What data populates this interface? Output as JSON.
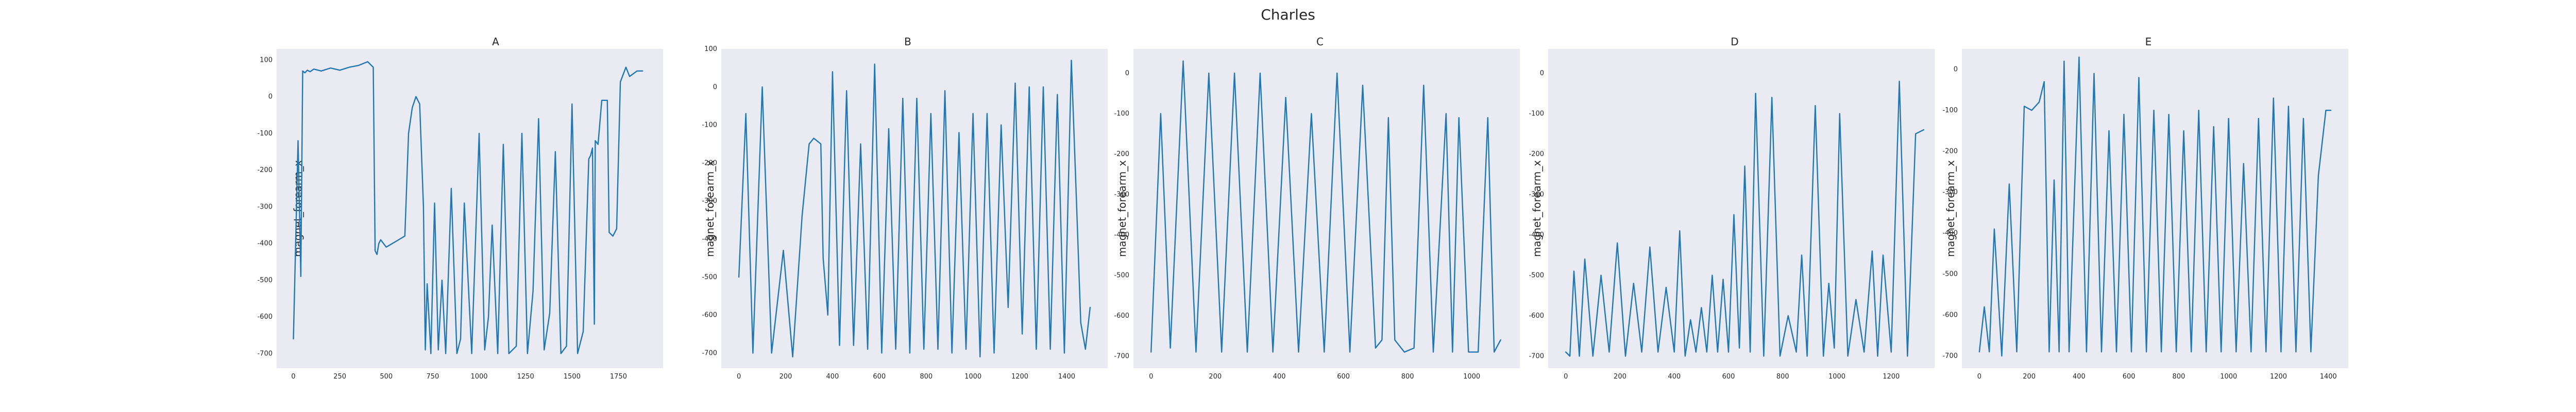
{
  "figure": {
    "suptitle": "Charles"
  },
  "colors": {
    "panel_bg": "#eaeaf2",
    "line": "#1f77b4",
    "text": "#262626"
  },
  "chart_data": [
    {
      "type": "line",
      "title": "A",
      "ylabel": "magnet_forearm_x",
      "xlim": [
        -90,
        1990
      ],
      "ylim": [
        -740,
        130
      ],
      "xticks": [
        0,
        250,
        500,
        750,
        1000,
        1250,
        1500,
        1750
      ],
      "yticks": [
        -700,
        -600,
        -500,
        -400,
        -300,
        -200,
        -100,
        0,
        100
      ],
      "x": [
        0,
        25,
        40,
        50,
        62,
        75,
        90,
        110,
        150,
        200,
        250,
        300,
        350,
        400,
        430,
        440,
        450,
        460,
        470,
        500,
        550,
        600,
        620,
        640,
        660,
        680,
        700,
        710,
        720,
        740,
        760,
        780,
        800,
        820,
        850,
        880,
        900,
        920,
        960,
        1000,
        1030,
        1050,
        1070,
        1100,
        1130,
        1160,
        1200,
        1230,
        1260,
        1290,
        1320,
        1350,
        1380,
        1410,
        1440,
        1470,
        1500,
        1530,
        1560,
        1590,
        1600,
        1610,
        1620,
        1625,
        1640,
        1660,
        1690,
        1700,
        1720,
        1740,
        1760,
        1790,
        1810,
        1850,
        1880
      ],
      "values": [
        -660,
        -120,
        -490,
        70,
        65,
        72,
        68,
        75,
        70,
        78,
        72,
        80,
        85,
        95,
        80,
        -420,
        -430,
        -400,
        -390,
        -410,
        -395,
        -380,
        -100,
        -30,
        0,
        -20,
        -300,
        -690,
        -510,
        -700,
        -290,
        -690,
        -500,
        -700,
        -250,
        -700,
        -660,
        -290,
        -700,
        -100,
        -690,
        -600,
        -350,
        -700,
        -130,
        -700,
        -680,
        -100,
        -700,
        -530,
        -60,
        -690,
        -590,
        -150,
        -700,
        -680,
        -20,
        -700,
        -640,
        -170,
        -160,
        -140,
        -620,
        -120,
        -130,
        -10,
        -10,
        -370,
        -380,
        -360,
        40,
        80,
        55,
        70,
        70
      ]
    },
    {
      "type": "line",
      "title": "B",
      "ylabel": "magnet_forearm_x",
      "xlim": [
        -75,
        1575
      ],
      "ylim": [
        -740,
        100
      ],
      "xticks": [
        0,
        200,
        400,
        600,
        800,
        1000,
        1200,
        1400
      ],
      "yticks": [
        -700,
        -600,
        -500,
        -400,
        -300,
        -200,
        -100,
        0,
        100
      ],
      "x": [
        0,
        30,
        60,
        100,
        140,
        190,
        230,
        270,
        300,
        320,
        330,
        350,
        360,
        380,
        400,
        430,
        460,
        490,
        520,
        550,
        580,
        610,
        640,
        670,
        700,
        730,
        760,
        790,
        820,
        850,
        880,
        910,
        940,
        970,
        1000,
        1030,
        1060,
        1090,
        1120,
        1150,
        1180,
        1210,
        1240,
        1270,
        1300,
        1330,
        1360,
        1390,
        1420,
        1440,
        1460,
        1480,
        1500
      ],
      "values": [
        -500,
        -70,
        -700,
        0,
        -700,
        -430,
        -710,
        -340,
        -150,
        -135,
        -140,
        -150,
        -450,
        -600,
        40,
        -680,
        -10,
        -680,
        -150,
        -690,
        60,
        -700,
        -110,
        -690,
        -30,
        -700,
        -30,
        -690,
        -70,
        -690,
        -10,
        -700,
        -120,
        -690,
        -70,
        -710,
        -70,
        -700,
        -100,
        -580,
        10,
        -650,
        0,
        -690,
        0,
        -690,
        -20,
        -700,
        70,
        -270,
        -620,
        -690,
        -580
      ]
    },
    {
      "type": "line",
      "title": "C",
      "ylabel": "magnet_forearm_x",
      "xlim": [
        -55,
        1150
      ],
      "ylim": [
        -730,
        60
      ],
      "xticks": [
        0,
        200,
        400,
        600,
        800,
        1000
      ],
      "yticks": [
        -700,
        -600,
        -500,
        -400,
        -300,
        -200,
        -100,
        0
      ],
      "x": [
        0,
        30,
        60,
        100,
        140,
        180,
        220,
        260,
        300,
        340,
        380,
        420,
        460,
        500,
        540,
        580,
        620,
        660,
        700,
        720,
        740,
        760,
        790,
        820,
        850,
        880,
        900,
        920,
        940,
        960,
        990,
        1020,
        1050,
        1070,
        1090
      ],
      "values": [
        -690,
        -100,
        -680,
        30,
        -690,
        0,
        -690,
        0,
        -690,
        0,
        -690,
        -60,
        -690,
        -100,
        -690,
        0,
        -690,
        -30,
        -680,
        -660,
        -110,
        -660,
        -690,
        -680,
        -30,
        -690,
        -400,
        -100,
        -690,
        -110,
        -690,
        -690,
        -110,
        -690,
        -660
      ]
    },
    {
      "type": "line",
      "title": "D",
      "ylabel": "magnet_forearm_x",
      "xlim": [
        -65,
        1360
      ],
      "ylim": [
        -730,
        60
      ],
      "xticks": [
        0,
        200,
        400,
        600,
        800,
        1000,
        1200
      ],
      "yticks": [
        -700,
        -600,
        -500,
        -400,
        -300,
        -200,
        -100,
        0
      ],
      "x": [
        0,
        15,
        30,
        50,
        70,
        100,
        130,
        160,
        190,
        220,
        250,
        280,
        310,
        340,
        370,
        400,
        420,
        440,
        460,
        480,
        500,
        520,
        540,
        560,
        580,
        600,
        620,
        640,
        660,
        680,
        700,
        730,
        760,
        790,
        820,
        850,
        870,
        890,
        920,
        950,
        970,
        990,
        1010,
        1040,
        1070,
        1100,
        1130,
        1150,
        1170,
        1200,
        1230,
        1260,
        1290,
        1320
      ],
      "values": [
        -690,
        -700,
        -490,
        -700,
        -460,
        -700,
        -500,
        -690,
        -420,
        -700,
        -520,
        -690,
        -430,
        -690,
        -530,
        -690,
        -390,
        -700,
        -610,
        -690,
        -580,
        -690,
        -500,
        -690,
        -510,
        -690,
        -350,
        -680,
        -230,
        -690,
        -50,
        -700,
        -60,
        -700,
        -600,
        -690,
        -450,
        -700,
        -80,
        -700,
        -520,
        -680,
        -100,
        -700,
        -560,
        -690,
        -440,
        -700,
        -450,
        -690,
        -20,
        -700,
        -150,
        -140
      ]
    },
    {
      "type": "line",
      "title": "E",
      "ylabel": "magnet_forearm_x",
      "xlim": [
        -70,
        1480
      ],
      "ylim": [
        -730,
        50
      ],
      "xticks": [
        0,
        200,
        400,
        600,
        800,
        1000,
        1200,
        1400
      ],
      "yticks": [
        -700,
        -600,
        -500,
        -400,
        -300,
        -200,
        -100,
        0
      ],
      "x": [
        0,
        20,
        40,
        60,
        90,
        120,
        150,
        180,
        210,
        240,
        260,
        280,
        300,
        320,
        340,
        360,
        400,
        430,
        460,
        490,
        520,
        550,
        580,
        610,
        640,
        670,
        700,
        730,
        760,
        790,
        820,
        850,
        880,
        910,
        940,
        970,
        1000,
        1030,
        1060,
        1090,
        1120,
        1150,
        1180,
        1210,
        1240,
        1270,
        1300,
        1330,
        1360,
        1390,
        1410
      ],
      "values": [
        -690,
        -580,
        -690,
        -390,
        -700,
        -280,
        -690,
        -90,
        -100,
        -80,
        -30,
        -690,
        -270,
        -690,
        20,
        -690,
        30,
        -690,
        -10,
        -690,
        -150,
        -690,
        -110,
        -690,
        -20,
        -690,
        -100,
        -690,
        -110,
        -690,
        -150,
        -690,
        -100,
        -690,
        -140,
        -690,
        -120,
        -690,
        -230,
        -690,
        -120,
        -690,
        -70,
        -690,
        -90,
        -690,
        -120,
        -690,
        -260,
        -100,
        -100
      ]
    }
  ]
}
